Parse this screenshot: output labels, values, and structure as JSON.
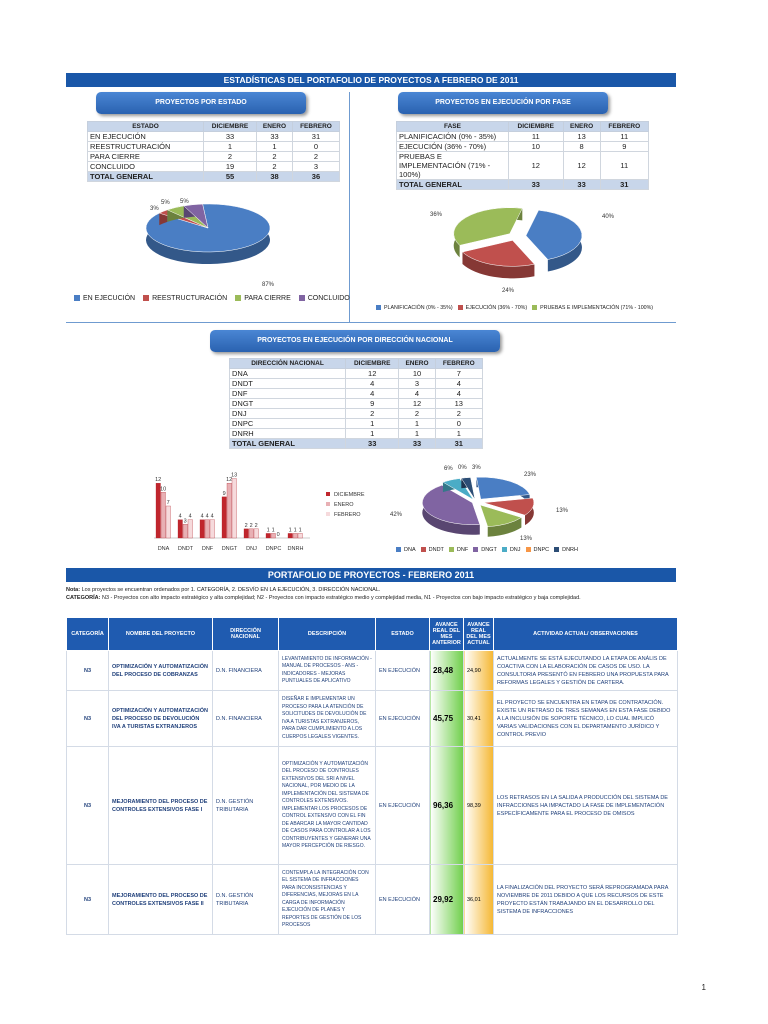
{
  "title": "ESTADÍSTICAS DEL PORTAFOLIO DE PROYECTOS A FEBRERO DE 2011",
  "estado": {
    "pill": "PROYECTOS POR ESTADO",
    "headers": [
      "ESTADO",
      "DICIEMBRE",
      "ENERO",
      "FEBRERO"
    ],
    "rows": [
      {
        "label": "EN EJECUCIÓN",
        "v": [
          "33",
          "33",
          "31"
        ]
      },
      {
        "label": "REESTRUCTURACIÓN",
        "v": [
          "1",
          "1",
          "0"
        ]
      },
      {
        "label": "PARA CIERRE",
        "v": [
          "2",
          "2",
          "2"
        ]
      },
      {
        "label": "CONCLUIDO",
        "v": [
          "19",
          "2",
          "3"
        ]
      }
    ],
    "total": {
      "label": "TOTAL GENERAL",
      "v": [
        "55",
        "38",
        "36"
      ]
    },
    "legend": [
      "EN EJECUCIÓN",
      "REESTRUCTURACIÓN",
      "PARA CIERRE",
      "CONCLUIDO"
    ]
  },
  "fase": {
    "pill": "PROYECTOS  EN EJECUCIÓN POR FASE",
    "headers": [
      "FASE",
      "DICIEMBRE",
      "ENERO",
      "FEBRERO"
    ],
    "rows": [
      {
        "label": "PLANIFICACIÓN (0% - 35%)",
        "v": [
          "11",
          "13",
          "11"
        ]
      },
      {
        "label": "EJECUCIÓN (36% - 70%)",
        "v": [
          "10",
          "8",
          "9"
        ]
      },
      {
        "label": "PRUEBAS E IMPLEMENTACIÓN (71% - 100%)",
        "v": [
          "12",
          "12",
          "11"
        ]
      }
    ],
    "total": {
      "label": "TOTAL GENERAL",
      "v": [
        "33",
        "33",
        "31"
      ]
    },
    "legend": [
      "PLANIFICACIÓN (0% - 35%)",
      "EJECUCIÓN (36% - 70%)",
      "PRUEBAS E IMPLEMENTACIÓN (71% - 100%)"
    ]
  },
  "direccion": {
    "pill": "PROYECTOS EN EJECUCIÓN  POR DIRECCIÓN NACIONAL",
    "headers": [
      "DIRECCIÓN NACIONAL",
      "DICIEMBRE",
      "ENERO",
      "FEBRERO"
    ],
    "rows": [
      {
        "label": "DNA",
        "v": [
          "12",
          "10",
          "7"
        ]
      },
      {
        "label": "DNDT",
        "v": [
          "4",
          "3",
          "4"
        ]
      },
      {
        "label": "DNF",
        "v": [
          "4",
          "4",
          "4"
        ]
      },
      {
        "label": "DNGT",
        "v": [
          "9",
          "12",
          "13"
        ]
      },
      {
        "label": "DNJ",
        "v": [
          "2",
          "2",
          "2"
        ]
      },
      {
        "label": "DNPC",
        "v": [
          "1",
          "1",
          "0"
        ]
      },
      {
        "label": "DNRH",
        "v": [
          "1",
          "1",
          "1"
        ]
      }
    ],
    "total": {
      "label": "TOTAL GENERAL",
      "v": [
        "33",
        "33",
        "31"
      ]
    }
  },
  "chart_data": [
    {
      "type": "pie",
      "labels": [
        "EN EJECUCIÓN",
        "REESTRUCTURACIÓN",
        "PARA CIERRE",
        "CONCLUIDO"
      ],
      "values": [
        87,
        3,
        5,
        5
      ],
      "data_labels": [
        "87%",
        "3%",
        "5%",
        "5%"
      ],
      "colors": [
        "#4a7ec4",
        "#c0504d",
        "#9bbb59",
        "#8064a2"
      ],
      "legend": "bottom"
    },
    {
      "type": "pie",
      "labels": [
        "PLANIFICACIÓN (0% - 35%)",
        "EJECUCIÓN (36% - 70%)",
        "PRUEBAS E IMPLEMENTACIÓN (71% - 100%)"
      ],
      "values": [
        40,
        24,
        36
      ],
      "data_labels": [
        "40%",
        "24%",
        "36%"
      ],
      "colors": [
        "#4a7ec4",
        "#c0504d",
        "#9bbb59"
      ],
      "legend": "bottom"
    },
    {
      "type": "bar",
      "categories": [
        "DNA",
        "DNDT",
        "DNF",
        "DNGT",
        "DNJ",
        "DNPC",
        "DNRH"
      ],
      "series": [
        {
          "name": "DICIEMBRE",
          "values": [
            12,
            4,
            4,
            9,
            2,
            1,
            1
          ],
          "color": "#c0262d"
        },
        {
          "name": "ENERO",
          "values": [
            10,
            3,
            4,
            12,
            2,
            1,
            1
          ],
          "color": "#e8b0b4"
        },
        {
          "name": "FEBRERO",
          "values": [
            7,
            4,
            4,
            13,
            2,
            0,
            1
          ],
          "color": "#f6dadc"
        }
      ],
      "ylim": [
        0,
        14
      ],
      "legend": "right"
    },
    {
      "type": "pie",
      "labels": [
        "DNA",
        "DNDT",
        "DNF",
        "DNGT",
        "DNJ",
        "DNPC",
        "DNRH"
      ],
      "values": [
        23,
        13,
        13,
        42,
        6,
        0,
        3
      ],
      "data_labels": [
        "23%",
        "13%",
        "13%",
        "42%",
        "6%",
        "0%",
        "3%"
      ],
      "colors": [
        "#4a7ec4",
        "#c0504d",
        "#9bbb59",
        "#8064a2",
        "#4bacc6",
        "#f79646",
        "#2c4d75"
      ],
      "legend": "bottom"
    }
  ],
  "portafolio": {
    "title": "PORTAFOLIO DE PROYECTOS - FEBRERO 2011",
    "note_label": "Nota:",
    "note": "Los proyectos se encuentran ordenados por 1. CATEGORÍA, 2. DESVÍO EN LA EJECUCIÓN, 3. DIRECCIÓN NACIONAL.",
    "cat_label": "CATEGORÍA:",
    "cat_note": "N3 - Proyectos con alto impacto estratégico y alta complejidad; N2 - Proyectos con impacto estratégico medio y complejidad media, N1 - Proyectos con bajo impacto estratégico y baja complejidad.",
    "headers": [
      "CATEGORÍA",
      "NOMBRE DEL PROYECTO",
      "DIRECCIÓN NACIONAL",
      "DESCRIPCIÓN",
      "ESTADO",
      "AVANCE REAL DEL MES ANTERIOR",
      "AVANCE REAL DEL MES ACTUAL",
      "ACTIVIDAD ACTUAL/ OBSERVACIONES"
    ],
    "rows": [
      {
        "cat": "N3",
        "name": "OPTIMIZACIÓN Y AUTOMATIZACIÓN DEL PROCESO DE COBRANZAS",
        "dir": "D.N. FINANCIERA",
        "desc": "LEVANTAMIENTO DE INFORMACIÓN - MANUAL DE PROCESOS - ANS - INDICADORES - MEJORAS PUNTUALES DE APLICATIVO",
        "estado": "EN EJECUCIÓN",
        "prev": "28,48",
        "curr": "24,90",
        "obs": "ACTUALMENTE SE ESTÁ EJECUTANDO LA ETAPA DE ANÁLIS DE COACTIVA CON LA ELABORACIÓN DE CASOS DE USO. LA CONSULTORIA PRESENTÓ EN FEBRERO UNA  PROPUESTA PARA REFORMAS LEGALES Y GESTIÓN DE CARTERA."
      },
      {
        "cat": "N3",
        "name": "OPTIMIZACIÓN Y AUTOMATIZACIÓN DEL PROCESO DE DEVOLUCIÓN IVA A TURISTAS EXTRANJEROS",
        "dir": "D.N. FINANCIERA",
        "desc": "DISEÑAR E IMPLEMENTAR UN PROCESO PARA LA ATENCIÓN DE SOLICITUDES DE DEVOLUCIÓN DE IVA A TURISTAS EXTRANJEROS, PARA DAR CUMPLIMIENTO A LOS CUERPOS LEGALES VIGENTES.",
        "estado": "EN EJECUCIÓN",
        "prev": "45,75",
        "curr": "30,41",
        "obs": "EL PROYECTO SE ENCUENTRA EN ETAPA DE CONTRATACIÓN. EXISTE UN RETRASO DE TRES SEMANAS EN ESTA FASE DEBIDO A LA INCLUSIÓN DE SOPORTE TÉCNICO, LO CUAL IMPLICÓ VARIAS VALIDACIONES CON EL DEPARTAMENTO JURÍDICO Y CONTROL PREVIO"
      },
      {
        "cat": "N3",
        "name": "MEJORAMIENTO DEL PROCESO DE CONTROLES EXTENSIVOS FASE I",
        "dir": "D.N. GESTIÓN TRIBUTARIA",
        "desc": "OPTIMIZACIÓN Y AUTOMATIZACIÓN DEL PROCESO DE CONTROLES EXTENSIVOS DEL SRI A NIVEL NACIONAL, POR MEDIO DE LA IMPLEMENTACIÓN DEL SISTEMA DE CONTROLES EXTENSIVOS. IMPLEMENTAR LOS PROCESOS DE CONTROL EXTENSIVO CON EL FIN DE ABARCAR LA MAYOR CANTIDAD DE CASOS PARA CONTROLAR A LOS CONTRIBUYENTES Y GENERAR UNA MAYOR PERCEPCIÓN DE RIESGO.",
        "estado": "EN EJECUCIÓN",
        "prev": "96,36",
        "curr": "98,39",
        "obs": "LOS RETRASOS EN LA SALIDA A PRODUCCIÓN DEL SISTEMA DE INFRACCIONES HA IMPACTADO LA FASE DE IMPLEMENTACIÓN ESPECÍFICAMENTE PARA EL PROCESO DE OMISOS"
      },
      {
        "cat": "N3",
        "name": "MEJORAMIENTO DEL PROCESO DE CONTROLES EXTENSIVOS FASE II",
        "dir": "D.N. GESTIÓN TRIBUTARIA",
        "desc": "CONTEMPLA LA INTEGRACIÓN CON EL SISTEMA DE INFRACCIONES PARA INCONSISTENCIAS Y DIFERENCIAS, MEJORAS EN LA CARGA DE INFORMACIÓN EJECUCIÓN DE PLANES Y REPORTES DE GESTIÓN DE LOS PROCESOS",
        "estado": "EN EJECUCIÓN",
        "prev": "29,92",
        "curr": "36,01",
        "obs": "LA FINALIZACIÓN DEL PROYECTO SERÁ REPROGRAMADA PARA NOVIEMBRE DE 2011 DEBIDO A QUE LOS RECURSOS DE ESTE PROYECTO ESTÁN TRABAJANDO EN EL DESARROLLO DEL SISTEMA DE INFRACCIONES"
      }
    ]
  },
  "page_number": "1"
}
